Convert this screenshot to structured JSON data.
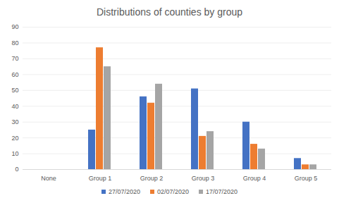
{
  "chart_data": {
    "type": "bar",
    "title": "Distributions of counties by group",
    "categories": [
      "None",
      "Group 1",
      "Group 2",
      "Group 3",
      "Group 4",
      "Group 5"
    ],
    "series": [
      {
        "name": "27/07/2020",
        "color": "#4472c4",
        "values": [
          0,
          25,
          46,
          51,
          30,
          7
        ]
      },
      {
        "name": "02/07/2020",
        "color": "#ed7d31",
        "values": [
          0,
          77,
          42,
          21,
          16,
          3
        ]
      },
      {
        "name": "17/07/2020",
        "color": "#a5a5a5",
        "values": [
          0,
          65,
          54,
          24,
          13,
          3
        ]
      }
    ],
    "ylim": [
      0,
      90
    ],
    "yticks": [
      0,
      10,
      20,
      30,
      40,
      50,
      60,
      70,
      80,
      90
    ],
    "grid": true,
    "legend": "bottom"
  }
}
